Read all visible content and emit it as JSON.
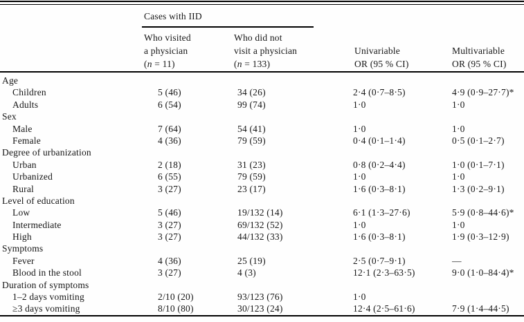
{
  "table": {
    "spanner_label": "Cases with IID",
    "columns": {
      "visited": {
        "line1": "Who visited",
        "line2": "a physician",
        "n_open": "(",
        "n_italic": "n",
        "n_rest": " = 11)"
      },
      "not_visited": {
        "line1": "Who did not",
        "line2": "visit a physician",
        "n_open": "(",
        "n_italic": "n",
        "n_rest": " = 133)"
      },
      "univariable": {
        "line1": "Univariable",
        "line2": "OR (95 % CI)"
      },
      "multivariable": {
        "line1": "Multivariable",
        "line2": "OR (95 % CI)"
      }
    },
    "rows": [
      {
        "label": "Age"
      },
      {
        "label": "Children",
        "c1": "5 (46)",
        "c2": "34 (26)",
        "c3": "2·4 (0·7–8·5)",
        "c4": "4·9 (0·9–27·7)*"
      },
      {
        "label": "Adults",
        "c1": "6 (54)",
        "c2": "99 (74)",
        "c3": "1·0",
        "c4": "1·0"
      },
      {
        "label": "Sex"
      },
      {
        "label": "Male",
        "c1": "7 (64)",
        "c2": "54 (41)",
        "c3": "1·0",
        "c4": "1·0"
      },
      {
        "label": "Female",
        "c1": "4 (36)",
        "c2": "79 (59)",
        "c3": "0·4 (0·1–1·4)",
        "c4": "0·5 (0·1–2·7)"
      },
      {
        "label": "Degree of urbanization"
      },
      {
        "label": "Urban",
        "c1": "2 (18)",
        "c2": "31 (23)",
        "c3": "0·8 (0·2–4·4)",
        "c4": "1·0 (0·1–7·1)"
      },
      {
        "label": "Urbanized",
        "c1": "6 (55)",
        "c2": "79 (59)",
        "c3": "1·0",
        "c4": "1·0"
      },
      {
        "label": "Rural",
        "c1": "3 (27)",
        "c2": "23 (17)",
        "c3": "1·6 (0·3–8·1)",
        "c4": "1·3 (0·2–9·1)"
      },
      {
        "label": "Level of education"
      },
      {
        "label": "Low",
        "c1": "5 (46)",
        "c2": "19/132 (14)",
        "c3": "6·1 (1·3–27·6)",
        "c4": "5·9 (0·8–44·6)*"
      },
      {
        "label": "Intermediate",
        "c1": "3 (27)",
        "c2": "69/132 (52)",
        "c3": "1·0",
        "c4": "1·0"
      },
      {
        "label": "High",
        "c1": "3 (27)",
        "c2": "44/132 (33)",
        "c3": "1·6 (0·3–8·1)",
        "c4": "1·9 (0·3–12·9)"
      },
      {
        "label": "Symptoms"
      },
      {
        "label": "Fever",
        "c1": "4 (36)",
        "c2": "25 (19)",
        "c3": "2·5 (0·7–9·1)",
        "c4": "—"
      },
      {
        "label": "Blood in the stool",
        "c1": "3 (27)",
        "c2": "4 (3)",
        "c3": "12·1 (2·3–63·5)",
        "c4": "9·0 (1·0–84·4)*"
      },
      {
        "label": "Duration of symptoms"
      },
      {
        "label": "1–2 days vomiting",
        "c1": "2/10 (20)",
        "c2": "93/123 (76)",
        "c3": "1·0",
        "c4": ""
      },
      {
        "label": "≥3 days vomiting",
        "c1": "8/10 (80)",
        "c2": "30/123 (24)",
        "c3": "12·4 (2·5–61·6)",
        "c4": "7·9 (1·4–44·5)"
      }
    ]
  }
}
